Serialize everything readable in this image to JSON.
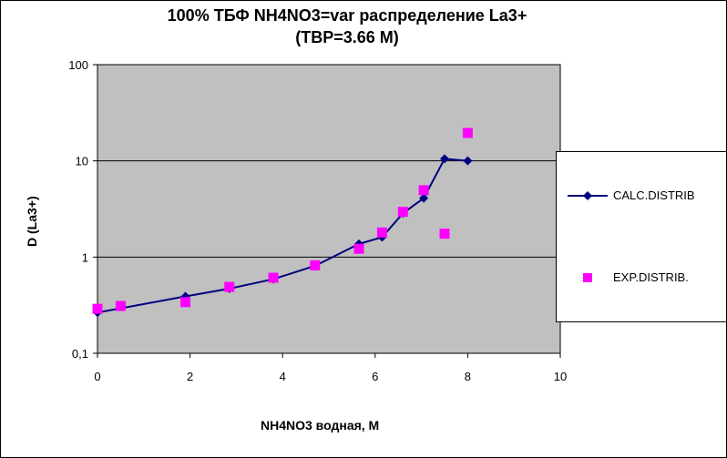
{
  "chart_data": {
    "type": "scatter",
    "title_line1": "100%  ТБФ  NH4NO3=var распределение La3+",
    "title_line2": "(TBP=3.66 M)",
    "xlabel": "NH4NO3   водная, М",
    "ylabel": "D (La3+)",
    "xlim": [
      0,
      10
    ],
    "ylim": [
      0.1,
      100
    ],
    "y_scale": "log",
    "x_ticks": [
      0,
      2,
      4,
      6,
      8,
      10
    ],
    "x_tick_labels": [
      "0",
      "2",
      "4",
      "6",
      "8",
      "10"
    ],
    "y_ticks": [
      0.1,
      1,
      10,
      100
    ],
    "y_tick_labels": [
      "0,1",
      "1",
      "10",
      "100"
    ],
    "grid": "horizontal",
    "legend_position": "right",
    "plot_background": "#c0c0c0",
    "series": [
      {
        "name": "CALC.DISTRIB",
        "style": "line-with-diamonds",
        "color": "#000080",
        "x": [
          0,
          1.9,
          2.85,
          3.8,
          4.7,
          5.65,
          6.15,
          6.6,
          7.05,
          7.5,
          8.0
        ],
        "y": [
          0.265,
          0.39,
          0.47,
          0.59,
          0.81,
          1.37,
          1.61,
          2.85,
          4.1,
          10.5,
          10.0
        ]
      },
      {
        "name": "EXP.DISTRIB.",
        "style": "squares",
        "color": "#ff00ff",
        "x": [
          0,
          0.5,
          1.9,
          2.85,
          3.8,
          4.7,
          5.65,
          6.15,
          6.6,
          7.05,
          7.5,
          8.0
        ],
        "y": [
          0.29,
          0.31,
          0.34,
          0.49,
          0.61,
          0.82,
          1.22,
          1.8,
          2.95,
          4.95,
          1.75,
          19.5
        ]
      }
    ]
  }
}
